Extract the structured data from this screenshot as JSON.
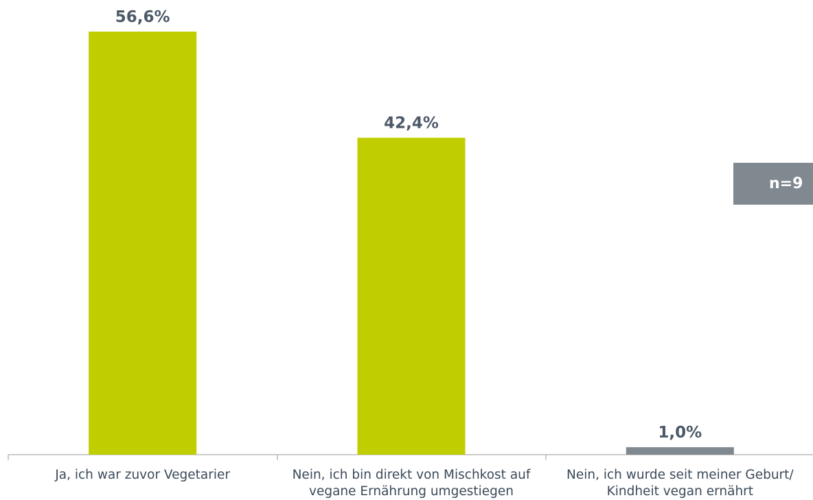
{
  "chart_data": {
    "type": "bar",
    "categories": [
      "Ja, ich war zuvor Vegetarier",
      "Nein, ich bin direkt von Mischkost auf vegane Ernährung umgestiegen",
      "Nein, ich wurde seit meiner Geburt/ Kindheit vegan ernährt"
    ],
    "values": [
      56.6,
      42.4,
      1.0
    ],
    "value_labels": [
      "56,6%",
      "42,4%",
      "1,0%"
    ],
    "colors": [
      "#c0cd00",
      "#c0cd00",
      "#808890"
    ],
    "ylim": [
      0,
      60
    ],
    "annotation": "n=9"
  }
}
